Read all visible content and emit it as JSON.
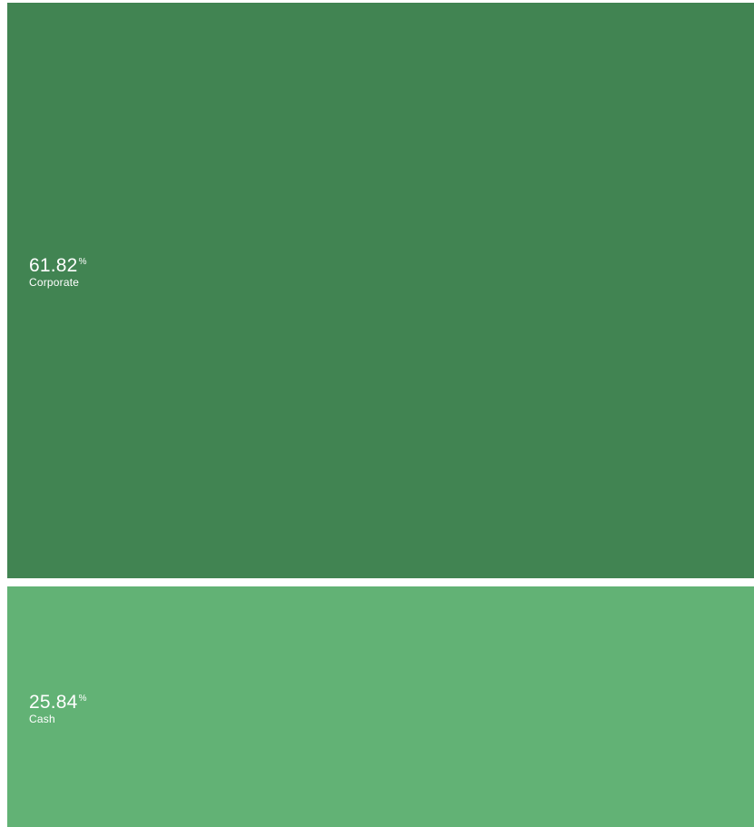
{
  "chart_data": {
    "type": "treemap",
    "items": [
      {
        "name": "Corporate",
        "value": 61.82,
        "value_label": "61.82",
        "unit": "%",
        "color": "#418452"
      },
      {
        "name": "Cash",
        "value": 25.84,
        "value_label": "25.84",
        "unit": "%",
        "color": "#62b275"
      }
    ]
  }
}
